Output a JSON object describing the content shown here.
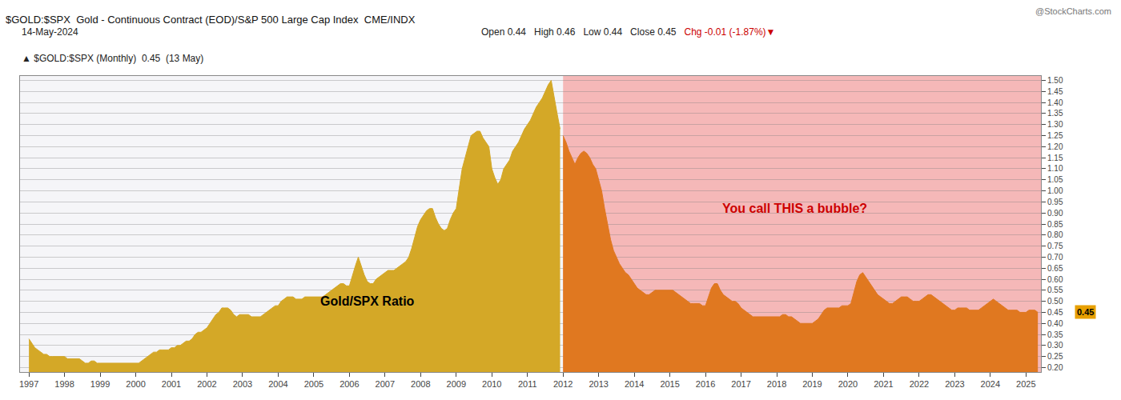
{
  "chart_data": {
    "type": "area",
    "title": "$GOLD:$SPX  Gold - Continuous Contract (EOD)/S&P 500 Large Cap Index  CME/INDX",
    "subtitle": "14-May-2024",
    "watermark": "@StockCharts.com",
    "legend_label": "▲ $GOLD:$SPX (Monthly)  0.45  (13 May)",
    "header": [
      {
        "text": "Open 0.44"
      },
      {
        "text": "High 0.46"
      },
      {
        "text": "Low 0.44"
      },
      {
        "text": "Close 0.45"
      },
      {
        "text": "Chg -0.01 (-1.87%)▼",
        "color": "#cc0000"
      }
    ],
    "annotations": [
      {
        "text": "Gold/SPX Ratio",
        "x": 2006.5,
        "y": 0.5,
        "color": "black"
      },
      {
        "text": "You call THIS a bubble?",
        "x": 2018.5,
        "y": 0.92,
        "color": "#cc0000"
      }
    ],
    "price_marker": {
      "value": 0.45,
      "label": "0.45",
      "color": "#e8a000"
    },
    "regions": [
      {
        "from": 1996.75,
        "to": 2012.0,
        "color": "#f5f5f8"
      },
      {
        "from": 2012.0,
        "to": 2025.42,
        "color": "#f5b8b8"
      }
    ],
    "xlim": [
      1996.75,
      2025.42
    ],
    "xticks": [
      1997,
      1998,
      1999,
      2000,
      2001,
      2002,
      2003,
      2004,
      2005,
      2006,
      2007,
      2008,
      2009,
      2010,
      2011,
      2012,
      2013,
      2014,
      2015,
      2016,
      2017,
      2018,
      2019,
      2020,
      2021,
      2022,
      2023,
      2024,
      2025
    ],
    "ylim": [
      0.18,
      1.52
    ],
    "yticks": [
      {
        "value": 0.2,
        "label": "0.20"
      },
      0.25,
      {
        "value": 0.3,
        "label": "0.30"
      },
      0.35,
      {
        "value": 0.4,
        "label": "0.40"
      },
      0.45,
      {
        "value": 0.5,
        "label": "0.50"
      },
      0.55,
      {
        "value": 0.6,
        "label": "0.60"
      },
      0.65,
      {
        "value": 0.7,
        "label": "0.70"
      },
      0.75,
      {
        "value": 0.8,
        "label": "0.80"
      },
      0.85,
      {
        "value": 0.9,
        "label": "0.90"
      },
      0.95,
      {
        "value": 1.0,
        "label": "1.00"
      },
      1.05,
      {
        "value": 1.1,
        "label": "1.10"
      },
      1.15,
      {
        "value": 1.2,
        "label": "1.20"
      },
      1.25,
      {
        "value": 1.3,
        "label": "1.30"
      },
      1.35,
      {
        "value": 1.4,
        "label": "1.40"
      },
      1.45,
      {
        "value": 1.5,
        "label": "1.50"
      }
    ],
    "grid": true,
    "series": [
      {
        "color": "#d4a827",
        "x": [
          1997,
          1997.0833333333333,
          1997.1666666666667,
          1997.25,
          1997.3333333333333,
          1997.4166666666667,
          1997.5,
          1997.5833333333333,
          1997.6666666666667,
          1997.75,
          1997.8333333333333,
          1997.9166666666667,
          1998,
          1998.0833333333333,
          1998.1666666666667,
          1998.25,
          1998.3333333333333,
          1998.4166666666667,
          1998.5,
          1998.5833333333333,
          1998.6666666666667,
          1998.75,
          1998.8333333333333,
          1998.9166666666667,
          1999,
          1999.0833333333333,
          1999.1666666666667,
          1999.25,
          1999.3333333333333,
          1999.4166666666667,
          1999.5,
          1999.5833333333333,
          1999.6666666666667,
          1999.75,
          1999.8333333333333,
          1999.9166666666667,
          2000,
          2000.0833333333333,
          2000.1666666666667,
          2000.25,
          2000.3333333333333,
          2000.4166666666667,
          2000.5,
          2000.5833333333333,
          2000.6666666666667,
          2000.75,
          2000.8333333333333,
          2000.9166666666667,
          2001,
          2001.0833333333333,
          2001.1666666666667,
          2001.25,
          2001.3333333333333,
          2001.4166666666667,
          2001.5,
          2001.5833333333333,
          2001.6666666666667,
          2001.75,
          2001.8333333333333,
          2001.9166666666667,
          2002,
          2002.0833333333333,
          2002.1666666666667,
          2002.25,
          2002.3333333333333,
          2002.4166666666667,
          2002.5,
          2002.5833333333333,
          2002.6666666666667,
          2002.75,
          2002.8333333333333,
          2002.9166666666667,
          2003,
          2003.0833333333333,
          2003.1666666666667,
          2003.25,
          2003.3333333333333,
          2003.4166666666667,
          2003.5,
          2003.5833333333333,
          2003.6666666666667,
          2003.75,
          2003.8333333333333,
          2003.9166666666667,
          2004,
          2004.0833333333333,
          2004.1666666666667,
          2004.25,
          2004.3333333333333,
          2004.4166666666667,
          2004.5,
          2004.5833333333333,
          2004.6666666666667,
          2004.75,
          2004.8333333333333,
          2004.9166666666667,
          2005,
          2005.0833333333333,
          2005.1666666666667,
          2005.25,
          2005.3333333333333,
          2005.4166666666667,
          2005.5,
          2005.5833333333333,
          2005.6666666666667,
          2005.75,
          2005.8333333333333,
          2005.9166666666667,
          2006,
          2006.0833333333333,
          2006.1666666666667,
          2006.25,
          2006.3333333333333,
          2006.4166666666667,
          2006.5,
          2006.5833333333333,
          2006.6666666666667,
          2006.75,
          2006.8333333333333,
          2006.9166666666667,
          2007,
          2007.0833333333333,
          2007.1666666666667,
          2007.25,
          2007.3333333333333,
          2007.4166666666667,
          2007.5,
          2007.5833333333333,
          2007.6666666666667,
          2007.75,
          2007.8333333333333,
          2007.9166666666667,
          2008,
          2008.0833333333333,
          2008.1666666666667,
          2008.25,
          2008.3333333333333,
          2008.4166666666667,
          2008.5,
          2008.5833333333333,
          2008.6666666666667,
          2008.75,
          2008.8333333333333,
          2008.9166666666667,
          2009,
          2009.0833333333333,
          2009.1666666666667,
          2009.25,
          2009.3333333333333,
          2009.4166666666667,
          2009.5,
          2009.5833333333333,
          2009.6666666666667,
          2009.75,
          2009.8333333333333,
          2009.9166666666667,
          2010,
          2010.0833333333333,
          2010.1666666666667,
          2010.25,
          2010.3333333333333,
          2010.4166666666667,
          2010.5,
          2010.5833333333333,
          2010.6666666666667,
          2010.75,
          2010.8333333333333,
          2010.9166666666667,
          2011,
          2011.0833333333333,
          2011.1666666666667,
          2011.25,
          2011.3333333333333,
          2011.4166666666667,
          2011.5,
          2011.5833333333333,
          2011.6666666666667,
          2011.75,
          2011.8333333333333,
          2011.9166666666667
        ],
        "values": [
          0.33,
          0.31,
          0.29,
          0.28,
          0.27,
          0.26,
          0.26,
          0.25,
          0.25,
          0.25,
          0.25,
          0.25,
          0.25,
          0.24,
          0.24,
          0.24,
          0.24,
          0.24,
          0.23,
          0.22,
          0.22,
          0.23,
          0.23,
          0.22,
          0.22,
          0.22,
          0.22,
          0.22,
          0.22,
          0.22,
          0.22,
          0.22,
          0.22,
          0.22,
          0.22,
          0.22,
          0.22,
          0.22,
          0.23,
          0.24,
          0.25,
          0.26,
          0.27,
          0.27,
          0.28,
          0.28,
          0.28,
          0.28,
          0.29,
          0.29,
          0.3,
          0.3,
          0.31,
          0.32,
          0.32,
          0.33,
          0.35,
          0.36,
          0.36,
          0.37,
          0.38,
          0.4,
          0.42,
          0.44,
          0.45,
          0.47,
          0.47,
          0.47,
          0.46,
          0.44,
          0.43,
          0.44,
          0.44,
          0.44,
          0.44,
          0.43,
          0.43,
          0.43,
          0.43,
          0.44,
          0.45,
          0.46,
          0.47,
          0.48,
          0.48,
          0.5,
          0.51,
          0.52,
          0.52,
          0.52,
          0.51,
          0.51,
          0.51,
          0.52,
          0.52,
          0.52,
          0.52,
          0.52,
          0.52,
          0.52,
          0.53,
          0.54,
          0.55,
          0.56,
          0.57,
          0.58,
          0.58,
          0.57,
          0.57,
          0.62,
          0.66,
          0.7,
          0.66,
          0.62,
          0.59,
          0.58,
          0.58,
          0.6,
          0.61,
          0.62,
          0.63,
          0.64,
          0.64,
          0.64,
          0.65,
          0.66,
          0.67,
          0.68,
          0.7,
          0.74,
          0.79,
          0.84,
          0.87,
          0.89,
          0.91,
          0.92,
          0.92,
          0.88,
          0.85,
          0.83,
          0.82,
          0.83,
          0.87,
          0.9,
          0.92,
          1.01,
          1.1,
          1.15,
          1.2,
          1.25,
          1.26,
          1.27,
          1.27,
          1.24,
          1.22,
          1.2,
          1.1,
          1.06,
          1.03,
          1.05,
          1.1,
          1.12,
          1.14,
          1.18,
          1.2,
          1.22,
          1.25,
          1.28,
          1.3,
          1.32,
          1.35,
          1.38,
          1.4,
          1.42,
          1.45,
          1.48,
          1.5,
          1.42,
          1.35,
          1.28
        ]
      },
      {
        "color": "#e07820",
        "x": [
          2012,
          2012.0833333333333,
          2012.1666666666667,
          2012.25,
          2012.3333333333333,
          2012.4166666666667,
          2012.5,
          2012.5833333333333,
          2012.6666666666667,
          2012.75,
          2012.8333333333333,
          2012.9166666666667,
          2013,
          2013.0833333333333,
          2013.1666666666667,
          2013.25,
          2013.3333333333333,
          2013.4166666666667,
          2013.5,
          2013.5833333333333,
          2013.6666666666667,
          2013.75,
          2013.8333333333333,
          2013.9166666666667,
          2014,
          2014.0833333333333,
          2014.1666666666667,
          2014.25,
          2014.3333333333333,
          2014.4166666666667,
          2014.5,
          2014.5833333333333,
          2014.6666666666667,
          2014.75,
          2014.8333333333333,
          2014.9166666666667,
          2015,
          2015.0833333333333,
          2015.1666666666667,
          2015.25,
          2015.3333333333333,
          2015.4166666666667,
          2015.5,
          2015.5833333333333,
          2015.6666666666667,
          2015.75,
          2015.8333333333333,
          2015.9166666666667,
          2016,
          2016.0833333333333,
          2016.1666666666667,
          2016.25,
          2016.3333333333333,
          2016.4166666666667,
          2016.5,
          2016.5833333333333,
          2016.6666666666667,
          2016.75,
          2016.8333333333333,
          2016.9166666666667,
          2017,
          2017.0833333333333,
          2017.1666666666667,
          2017.25,
          2017.3333333333333,
          2017.4166666666667,
          2017.5,
          2017.5833333333333,
          2017.6666666666667,
          2017.75,
          2017.8333333333333,
          2017.9166666666667,
          2018,
          2018.0833333333333,
          2018.1666666666667,
          2018.25,
          2018.3333333333333,
          2018.4166666666667,
          2018.5,
          2018.5833333333333,
          2018.6666666666667,
          2018.75,
          2018.8333333333333,
          2018.9166666666667,
          2019,
          2019.0833333333333,
          2019.1666666666667,
          2019.25,
          2019.3333333333333,
          2019.4166666666667,
          2019.5,
          2019.5833333333333,
          2019.6666666666667,
          2019.75,
          2019.8333333333333,
          2019.9166666666667,
          2020,
          2020.0833333333333,
          2020.1666666666667,
          2020.25,
          2020.3333333333333,
          2020.4166666666667,
          2020.5,
          2020.5833333333333,
          2020.6666666666667,
          2020.75,
          2020.8333333333333,
          2020.9166666666667,
          2021,
          2021.0833333333333,
          2021.1666666666667,
          2021.25,
          2021.3333333333333,
          2021.4166666666667,
          2021.5,
          2021.5833333333333,
          2021.6666666666667,
          2021.75,
          2021.8333333333333,
          2021.9166666666667,
          2022,
          2022.0833333333333,
          2022.1666666666667,
          2022.25,
          2022.3333333333333,
          2022.4166666666667,
          2022.5,
          2022.5833333333333,
          2022.6666666666667,
          2022.75,
          2022.8333333333333,
          2022.9166666666667,
          2023,
          2023.0833333333333,
          2023.1666666666667,
          2023.25,
          2023.3333333333333,
          2023.4166666666667,
          2023.5,
          2023.5833333333333,
          2023.6666666666667,
          2023.75,
          2023.8333333333333,
          2023.9166666666667,
          2024,
          2024.0833333333333,
          2024.1666666666667,
          2024.25,
          2024.3333333333333,
          2024.4166666666667,
          2024.5,
          2024.5833333333333,
          2024.6666666666667,
          2024.75,
          2024.8333333333333,
          2024.9166666666667,
          2025,
          2025.0833333333333,
          2025.1666666666667,
          2025.25,
          2025.3333333333333
        ],
        "values": [
          1.25,
          1.22,
          1.18,
          1.15,
          1.12,
          1.15,
          1.17,
          1.18,
          1.17,
          1.15,
          1.12,
          1.1,
          1.05,
          1.0,
          0.92,
          0.85,
          0.78,
          0.73,
          0.7,
          0.67,
          0.65,
          0.63,
          0.62,
          0.6,
          0.58,
          0.56,
          0.55,
          0.54,
          0.53,
          0.53,
          0.54,
          0.55,
          0.55,
          0.55,
          0.55,
          0.55,
          0.55,
          0.55,
          0.54,
          0.53,
          0.52,
          0.51,
          0.5,
          0.49,
          0.49,
          0.49,
          0.49,
          0.48,
          0.48,
          0.52,
          0.56,
          0.58,
          0.58,
          0.55,
          0.53,
          0.52,
          0.51,
          0.5,
          0.5,
          0.49,
          0.47,
          0.46,
          0.45,
          0.44,
          0.43,
          0.43,
          0.43,
          0.43,
          0.43,
          0.43,
          0.43,
          0.43,
          0.43,
          0.43,
          0.44,
          0.44,
          0.43,
          0.43,
          0.42,
          0.41,
          0.4,
          0.4,
          0.4,
          0.4,
          0.4,
          0.41,
          0.42,
          0.44,
          0.46,
          0.47,
          0.47,
          0.47,
          0.47,
          0.47,
          0.48,
          0.48,
          0.48,
          0.49,
          0.54,
          0.59,
          0.62,
          0.63,
          0.61,
          0.59,
          0.57,
          0.55,
          0.53,
          0.52,
          0.51,
          0.5,
          0.49,
          0.49,
          0.5,
          0.51,
          0.52,
          0.52,
          0.52,
          0.51,
          0.5,
          0.5,
          0.5,
          0.51,
          0.52,
          0.53,
          0.53,
          0.52,
          0.51,
          0.5,
          0.49,
          0.48,
          0.47,
          0.46,
          0.46,
          0.47,
          0.47,
          0.47,
          0.47,
          0.46,
          0.46,
          0.46,
          0.46,
          0.47,
          0.48,
          0.49,
          0.5,
          0.51,
          0.5,
          0.49,
          0.48,
          0.47,
          0.46,
          0.46,
          0.46,
          0.46,
          0.45,
          0.45,
          0.45,
          0.46,
          0.46,
          0.46,
          0.45
        ]
      }
    ]
  }
}
